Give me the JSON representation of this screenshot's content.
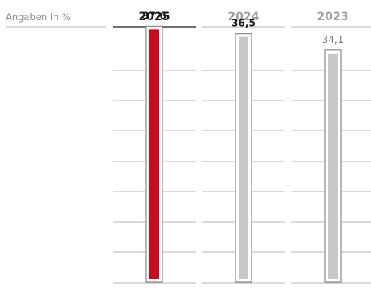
{
  "chart_data": {
    "type": "bar",
    "unit_label": "Angaben in %",
    "categories": [
      "2025",
      "2024",
      "2023"
    ],
    "values": [
      37.6,
      36.5,
      34.1
    ],
    "value_labels": [
      "37,6",
      "36,5",
      "34,1"
    ],
    "highlight_index": 0,
    "ylim": [
      0,
      38.0
    ],
    "grid": true,
    "colors": {
      "highlight_fill": "#cc0a1e",
      "other_fill": "#c8c8c8",
      "bar_outline": "#8a8a8a",
      "grid": "#b4b4b4",
      "header_active_line": "#1a1a1a",
      "header_inactive_line": "#b4b4b4",
      "active_text": "#1a1a1a",
      "inactive_text": "#a0a0a0"
    }
  }
}
